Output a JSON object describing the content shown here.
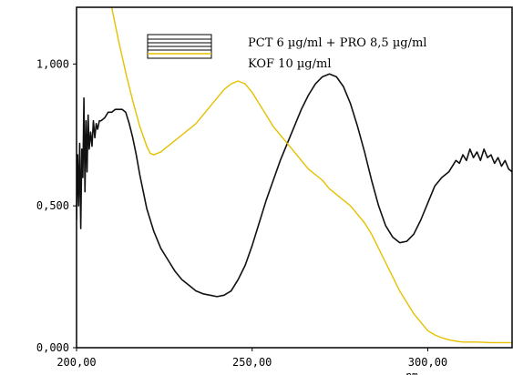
{
  "chart_data": {
    "type": "line",
    "xlabel": "nm",
    "ylabel": "",
    "xlim": [
      200,
      324
    ],
    "ylim": [
      0,
      1.2
    ],
    "x_ticks": [
      200,
      250,
      300
    ],
    "x_tick_labels": [
      "200,00",
      "250,00",
      "300,00"
    ],
    "y_ticks": [
      0,
      0.5,
      1.0
    ],
    "y_tick_labels": [
      "0,000",
      "0,500",
      "1,000"
    ],
    "grid": false,
    "legend_position": "top-center",
    "series": [
      {
        "name": "PCT 6 µg/ml + PRO 8,5 µg/ml",
        "color": "#111111",
        "points": [
          [
            200.0,
            0.45
          ],
          [
            200.3,
            0.68
          ],
          [
            200.6,
            0.5
          ],
          [
            200.9,
            0.72
          ],
          [
            201.2,
            0.42
          ],
          [
            201.5,
            0.7
          ],
          [
            201.8,
            0.6
          ],
          [
            202.1,
            0.88
          ],
          [
            202.4,
            0.55
          ],
          [
            202.7,
            0.8
          ],
          [
            203.0,
            0.62
          ],
          [
            203.3,
            0.82
          ],
          [
            203.6,
            0.7
          ],
          [
            204.0,
            0.76
          ],
          [
            204.4,
            0.71
          ],
          [
            204.8,
            0.8
          ],
          [
            205.2,
            0.74
          ],
          [
            205.6,
            0.79
          ],
          [
            206,
            0.77
          ],
          [
            206.5,
            0.8
          ],
          [
            207,
            0.8
          ],
          [
            208,
            0.81
          ],
          [
            209,
            0.83
          ],
          [
            210,
            0.83
          ],
          [
            211,
            0.84
          ],
          [
            212,
            0.84
          ],
          [
            213,
            0.84
          ],
          [
            214,
            0.83
          ],
          [
            215,
            0.79
          ],
          [
            216,
            0.74
          ],
          [
            217,
            0.68
          ],
          [
            218,
            0.61
          ],
          [
            219,
            0.55
          ],
          [
            220,
            0.49
          ],
          [
            222,
            0.41
          ],
          [
            224,
            0.35
          ],
          [
            226,
            0.31
          ],
          [
            228,
            0.27
          ],
          [
            230,
            0.24
          ],
          [
            232,
            0.22
          ],
          [
            234,
            0.2
          ],
          [
            236,
            0.19
          ],
          [
            238,
            0.185
          ],
          [
            240,
            0.18
          ],
          [
            242,
            0.185
          ],
          [
            244,
            0.2
          ],
          [
            246,
            0.24
          ],
          [
            248,
            0.29
          ],
          [
            250,
            0.36
          ],
          [
            252,
            0.44
          ],
          [
            254,
            0.52
          ],
          [
            256,
            0.59
          ],
          [
            258,
            0.66
          ],
          [
            260,
            0.72
          ],
          [
            262,
            0.78
          ],
          [
            264,
            0.84
          ],
          [
            266,
            0.89
          ],
          [
            268,
            0.93
          ],
          [
            270,
            0.955
          ],
          [
            272,
            0.965
          ],
          [
            274,
            0.955
          ],
          [
            276,
            0.92
          ],
          [
            278,
            0.86
          ],
          [
            280,
            0.78
          ],
          [
            282,
            0.69
          ],
          [
            284,
            0.59
          ],
          [
            286,
            0.5
          ],
          [
            288,
            0.43
          ],
          [
            290,
            0.39
          ],
          [
            292,
            0.37
          ],
          [
            294,
            0.375
          ],
          [
            296,
            0.4
          ],
          [
            298,
            0.45
          ],
          [
            300,
            0.51
          ],
          [
            302,
            0.57
          ],
          [
            304,
            0.6
          ],
          [
            306,
            0.62
          ],
          [
            307,
            0.64
          ],
          [
            308,
            0.66
          ],
          [
            309,
            0.65
          ],
          [
            310,
            0.68
          ],
          [
            311,
            0.66
          ],
          [
            312,
            0.7
          ],
          [
            313,
            0.67
          ],
          [
            314,
            0.69
          ],
          [
            315,
            0.66
          ],
          [
            316,
            0.7
          ],
          [
            317,
            0.67
          ],
          [
            318,
            0.68
          ],
          [
            319,
            0.65
          ],
          [
            320,
            0.67
          ],
          [
            321,
            0.64
          ],
          [
            322,
            0.66
          ],
          [
            323,
            0.63
          ],
          [
            324,
            0.62
          ]
        ]
      },
      {
        "name": "KOF 10 µg/ml",
        "color": "#e6c000",
        "points": [
          [
            208,
            1.3
          ],
          [
            210,
            1.2
          ],
          [
            212,
            1.08
          ],
          [
            214,
            0.97
          ],
          [
            216,
            0.87
          ],
          [
            218,
            0.78
          ],
          [
            220,
            0.71
          ],
          [
            221,
            0.685
          ],
          [
            222,
            0.68
          ],
          [
            224,
            0.69
          ],
          [
            226,
            0.71
          ],
          [
            228,
            0.73
          ],
          [
            230,
            0.75
          ],
          [
            232,
            0.77
          ],
          [
            234,
            0.79
          ],
          [
            236,
            0.82
          ],
          [
            238,
            0.85
          ],
          [
            240,
            0.88
          ],
          [
            242,
            0.91
          ],
          [
            244,
            0.93
          ],
          [
            246,
            0.94
          ],
          [
            248,
            0.93
          ],
          [
            250,
            0.9
          ],
          [
            252,
            0.86
          ],
          [
            254,
            0.82
          ],
          [
            256,
            0.78
          ],
          [
            258,
            0.75
          ],
          [
            260,
            0.72
          ],
          [
            262,
            0.69
          ],
          [
            264,
            0.66
          ],
          [
            266,
            0.63
          ],
          [
            268,
            0.61
          ],
          [
            270,
            0.59
          ],
          [
            272,
            0.56
          ],
          [
            274,
            0.54
          ],
          [
            276,
            0.52
          ],
          [
            278,
            0.5
          ],
          [
            280,
            0.47
          ],
          [
            282,
            0.44
          ],
          [
            284,
            0.4
          ],
          [
            286,
            0.35
          ],
          [
            288,
            0.3
          ],
          [
            290,
            0.25
          ],
          [
            292,
            0.2
          ],
          [
            294,
            0.16
          ],
          [
            296,
            0.12
          ],
          [
            298,
            0.09
          ],
          [
            300,
            0.06
          ],
          [
            302,
            0.045
          ],
          [
            304,
            0.035
          ],
          [
            306,
            0.028
          ],
          [
            308,
            0.023
          ],
          [
            310,
            0.02
          ],
          [
            314,
            0.02
          ],
          [
            318,
            0.018
          ],
          [
            324,
            0.018
          ]
        ]
      }
    ]
  }
}
